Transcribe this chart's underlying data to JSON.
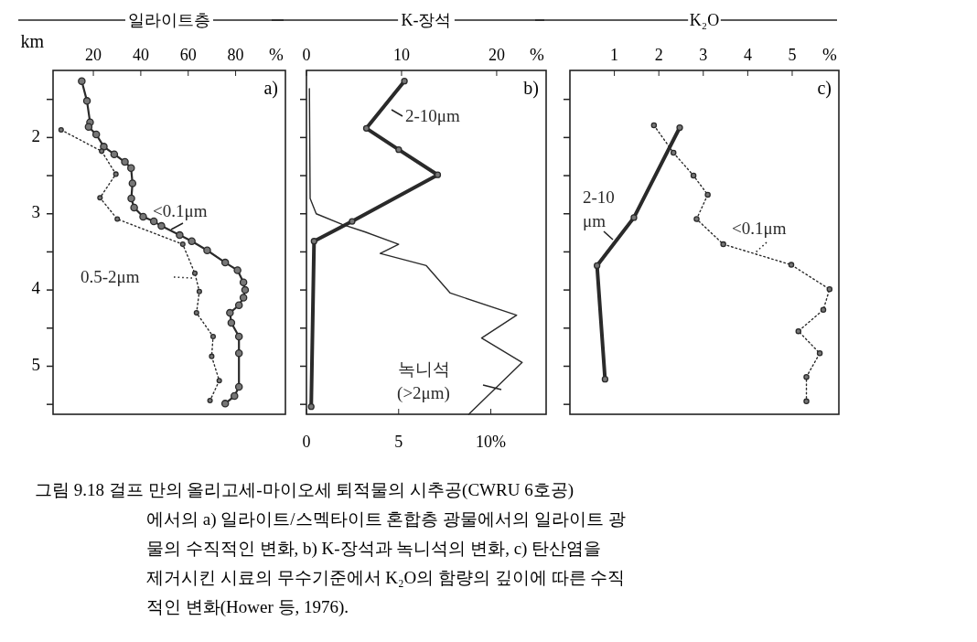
{
  "chart_data": [
    {
      "type": "line",
      "title": "일라이트층",
      "ylabel": "km",
      "xlabel": "%",
      "xlim": [
        3,
        101
      ],
      "xticks": [
        20,
        40,
        60,
        80
      ],
      "ylim": [
        5.63,
        1.12
      ],
      "yticks": [
        {
          "value": 1.5,
          "label": null
        },
        2,
        {
          "value": 2.5,
          "label": null
        },
        3,
        {
          "value": 3.5,
          "label": null
        },
        4,
        {
          "value": 4.5,
          "label": null
        },
        5,
        {
          "value": 5.5,
          "label": null
        }
      ],
      "annotations": [
        "a)",
        "그림 9.18 걸프 만의 올리고세-마이오세 퇴적물의 시추공(CWRU 6호공)\n에서의 a) 일라이트/스멕타이트 혼합층 광물에서의 일라이트 광\n물의 수직적인 변화, b) K-장석과 녹니석의 변화, c) 탄산염을\n제거시킨 시료의 무수기준에서 K₂O의 함량의 깊이에 따른 수직\n적인 변화(Hower 등, 1976)."
      ],
      "series": [
        {
          "name": "<0.1μm",
          "color": "#2a2a2a",
          "line_style": "solid",
          "marker": "circle",
          "x": [
            15.1,
            17.3,
            18.6,
            18,
            21.2,
            24.4,
            28.8,
            33.3,
            35.9,
            36.5,
            36,
            37.2,
            41,
            45.5,
            48.7,
            56.4,
            61.5,
            68,
            75.6,
            80.8,
            83.3,
            84,
            83.3,
            81.4,
            77.6,
            78.2,
            81.4,
            81.4,
            81.4,
            79.5,
            75.6
          ],
          "values": [
            1.26,
            1.52,
            1.8,
            1.86,
            1.96,
            2.12,
            2.22,
            2.32,
            2.4,
            2.6,
            2.8,
            2.92,
            3.04,
            3.1,
            3.16,
            3.28,
            3.36,
            3.48,
            3.64,
            3.74,
            3.9,
            4.0,
            4.1,
            4.2,
            4.3,
            4.43,
            4.61,
            4.83,
            5.27,
            5.39,
            5.49
          ]
        },
        {
          "name": "0.5-2μm",
          "color": "#2a2a2a",
          "line_style": "dotted",
          "marker": "circle",
          "x": [
            6.4,
            23.5,
            29.5,
            22.8,
            30.1,
            57.7,
            62.8,
            64.7,
            63.5,
            70.5,
            69.9,
            73.1,
            69.2
          ],
          "values": [
            1.9,
            2.18,
            2.48,
            2.79,
            3.07,
            3.4,
            3.78,
            4.02,
            4.3,
            4.61,
            4.87,
            5.19,
            5.45
          ]
        }
      ]
    },
    {
      "type": "line",
      "title": "K-장석",
      "x2label": "%",
      "x2lim": [
        0,
        25.2
      ],
      "x2ticks": [
        0,
        10,
        20
      ],
      "xlim": [
        0,
        13
      ],
      "xticks": [
        0,
        5,
        {
          "value": 10,
          "label": "10%"
        }
      ],
      "ylim": [
        5.63,
        1.12
      ],
      "yticks": [
        {
          "value": 1.5,
          "label": null
        },
        2,
        {
          "value": 2.5,
          "label": null
        },
        3,
        {
          "value": 3.5,
          "label": null
        },
        4,
        {
          "value": 4.5,
          "label": null
        },
        5,
        {
          "value": 5.5,
          "label": null
        }
      ],
      "tick_labels": "x",
      "annotations": [
        "b)"
      ],
      "series": [
        {
          "name": "2-10μm",
          "color": "#2a2a2a",
          "axis": "x2",
          "line_style": "solid",
          "marker": "circle",
          "x": [
            10.3,
            6.3,
            9.7,
            13.8,
            4.8,
            0.8,
            0.5
          ],
          "values": [
            1.26,
            1.88,
            2.16,
            2.49,
            3.1,
            3.36,
            5.53
          ]
        },
        {
          "name": "녹니석 (>2μm)",
          "color": "#2a2a2a",
          "line_style": "solid",
          "x": [
            0.16,
            0.2,
            0.53,
            1.94,
            3.2,
            5.0,
            4.0,
            6.5,
            7.8,
            11.4,
            9.5,
            11.7,
            8.8
          ],
          "values": [
            1.36,
            2.8,
            3.0,
            3.14,
            3.24,
            3.4,
            3.52,
            3.68,
            4.04,
            4.33,
            4.63,
            4.95,
            5.63
          ]
        }
      ]
    },
    {
      "type": "line",
      "title": "K₂O",
      "xlabel": "%",
      "xlim": [
        0,
        6.05
      ],
      "xticks": [
        1,
        2,
        3,
        4,
        5
      ],
      "ylim": [
        5.63,
        1.12
      ],
      "yticks": [
        {
          "value": 1.5,
          "label": null
        },
        {
          "value": 2,
          "label": null
        },
        {
          "value": 2.5,
          "label": null
        },
        {
          "value": 3,
          "label": null
        },
        {
          "value": 3.5,
          "label": null
        },
        {
          "value": 4,
          "label": null
        },
        {
          "value": 4.5,
          "label": null
        },
        {
          "value": 5,
          "label": null
        },
        {
          "value": 5.5,
          "label": null
        }
      ],
      "tick_labels": "x",
      "annotations": [
        "c)"
      ],
      "series": [
        {
          "name": "2-10 μm",
          "color": "#2a2a2a",
          "line_style": "solid",
          "marker": "circle",
          "x": [
            2.47,
            1.44,
            0.61,
            0.79
          ],
          "values": [
            1.87,
            3.05,
            3.68,
            5.17
          ]
        },
        {
          "name": "<0.1μm",
          "color": "#2a2a2a",
          "line_style": "dotted",
          "marker": "circle",
          "x": [
            1.89,
            2.33,
            2.78,
            3.1,
            2.85,
            3.45,
            4.98,
            5.84,
            5.7,
            5.14,
            5.62,
            5.32,
            5.32
          ],
          "values": [
            1.84,
            2.2,
            2.5,
            2.75,
            3.07,
            3.4,
            3.67,
            3.99,
            4.26,
            4.54,
            4.83,
            5.14,
            5.46
          ]
        }
      ]
    }
  ]
}
